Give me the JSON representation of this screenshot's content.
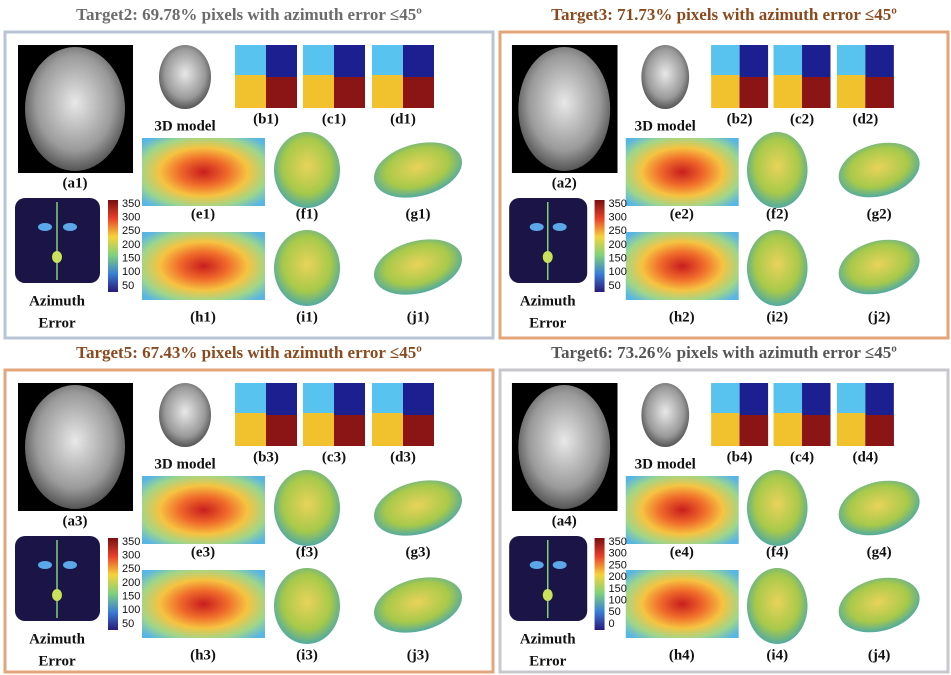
{
  "panels": [
    {
      "title": "Target2: 69.78% pixels with  azimuth error ≤45º",
      "title_color": "#6b6b6b",
      "border_color": "#b9c4d4",
      "labels": {
        "a": "(a1)",
        "model": "3D model",
        "b": "(b1)",
        "c": "(c1)",
        "d": "(d1)",
        "e": "(e1)",
        "f": "(f1)",
        "g": "(g1)",
        "h": "(h1)",
        "i": "(i1)",
        "j": "(j1)"
      },
      "colorbar_ticks": [
        350,
        300,
        250,
        200,
        150,
        100,
        50
      ],
      "error_label": {
        "line1": "Azimuth",
        "line2": "Error"
      }
    },
    {
      "title": "Target3: 71.73% pixels with azimuth error ≤45º",
      "title_color": "#8b4a1e",
      "border_color": "#e3a67a",
      "labels": {
        "a": "(a2)",
        "model": "3D model",
        "b": "(b2)",
        "c": "(c2)",
        "d": "(d2)",
        "e": "(e2)",
        "f": "(f2)",
        "g": "(g2)",
        "h": "(h2)",
        "i": "(i2)",
        "j": "(j2)"
      },
      "colorbar_ticks": [
        350,
        300,
        250,
        200,
        150,
        100,
        50
      ],
      "error_label": {
        "line1": "Azimuth",
        "line2": "Error"
      }
    },
    {
      "title": "Target5: 67.43% pixels with azimuth error ≤45º",
      "title_color": "#8b4a1e",
      "border_color": "#e3a67a",
      "labels": {
        "a": "(a3)",
        "model": "3D model",
        "b": "(b3)",
        "c": "(c3)",
        "d": "(d3)",
        "e": "(e3)",
        "f": "(f3)",
        "g": "(g3)",
        "h": "(h3)",
        "i": "(i3)",
        "j": "(j3)"
      },
      "colorbar_ticks": [
        350,
        300,
        250,
        200,
        150,
        100,
        50
      ],
      "error_label": {
        "line1": "Azimuth",
        "line2": "Error"
      }
    },
    {
      "title": "Target6: 73.26% pixels with azimuth error ≤45º",
      "title_color": "#555555",
      "border_color": "#c8c8cc",
      "labels": {
        "a": "(a4)",
        "model": "3D model",
        "b": "(b4)",
        "c": "(c4)",
        "d": "(d4)",
        "e": "(e4)",
        "f": "(f4)",
        "g": "(g4)",
        "h": "(h4)",
        "i": "(i4)",
        "j": "(j4)"
      },
      "colorbar_ticks": [
        350,
        300,
        250,
        200,
        150,
        100,
        50,
        0
      ],
      "error_label": {
        "line1": "Azimuth",
        "line2": "Error"
      }
    }
  ]
}
